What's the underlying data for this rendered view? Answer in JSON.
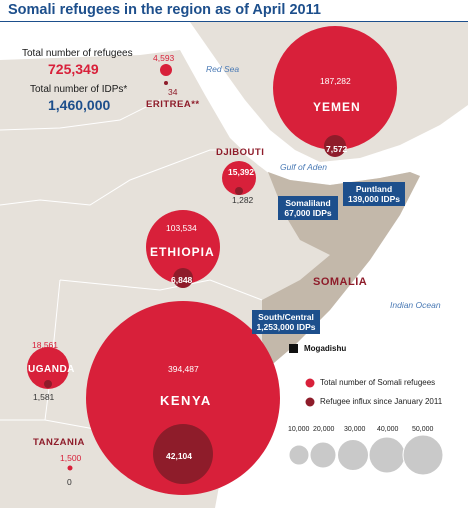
{
  "title": "Somali refugees in the region as of April 2011",
  "totals": {
    "refugees_label": "Total number of refugees",
    "refugees_value": "725,349",
    "idps_label": "Total number of IDPs*",
    "idps_value": "1,460,000"
  },
  "water": {
    "red_sea": "Red Sea",
    "gulf_of_aden": "Gulf of Aden",
    "indian_ocean": "Indian Ocean"
  },
  "countries": [
    {
      "id": "eritrea",
      "name": "ERITREA**",
      "refugees": "4,593",
      "influx": "34"
    },
    {
      "id": "yemen",
      "name": "YEMEN",
      "refugees": "187,282",
      "influx": "7,572"
    },
    {
      "id": "djibouti",
      "name": "DJIBOUTI",
      "refugees": "15,392",
      "influx": "1,282"
    },
    {
      "id": "ethiopia",
      "name": "ETHIOPIA",
      "refugees": "103,534",
      "influx": "6,848"
    },
    {
      "id": "kenya",
      "name": "KENYA",
      "refugees": "394,487",
      "influx": "42,104"
    },
    {
      "id": "uganda",
      "name": "UGANDA",
      "refugees": "18,561",
      "influx": "1,581"
    },
    {
      "id": "tanzania",
      "name": "TANZANIA",
      "refugees": "1,500",
      "influx": "0"
    }
  ],
  "somalia": {
    "name": "SOMALIA",
    "capital": "Mogadishu",
    "idps": [
      {
        "region": "Somaliland",
        "value": "67,000 IDPs"
      },
      {
        "region": "Puntland",
        "value": "139,000 IDPs"
      },
      {
        "region": "South/Central",
        "value": "1,253,000 IDPs"
      }
    ]
  },
  "legend": {
    "total_label": "Total number of Somali refugees",
    "influx_label": "Refugee influx since January 2011",
    "scale": [
      "10,000",
      "20,000",
      "30,000",
      "40,000",
      "50,000"
    ]
  },
  "colors": {
    "refugees": "#d8203a",
    "influx": "#8e1c2a",
    "idp_box": "#1d4f8c",
    "land": "#e6e1da",
    "somalia": "#c3b8aa",
    "sea": "#ffffff",
    "title": "#1d4f8c"
  }
}
